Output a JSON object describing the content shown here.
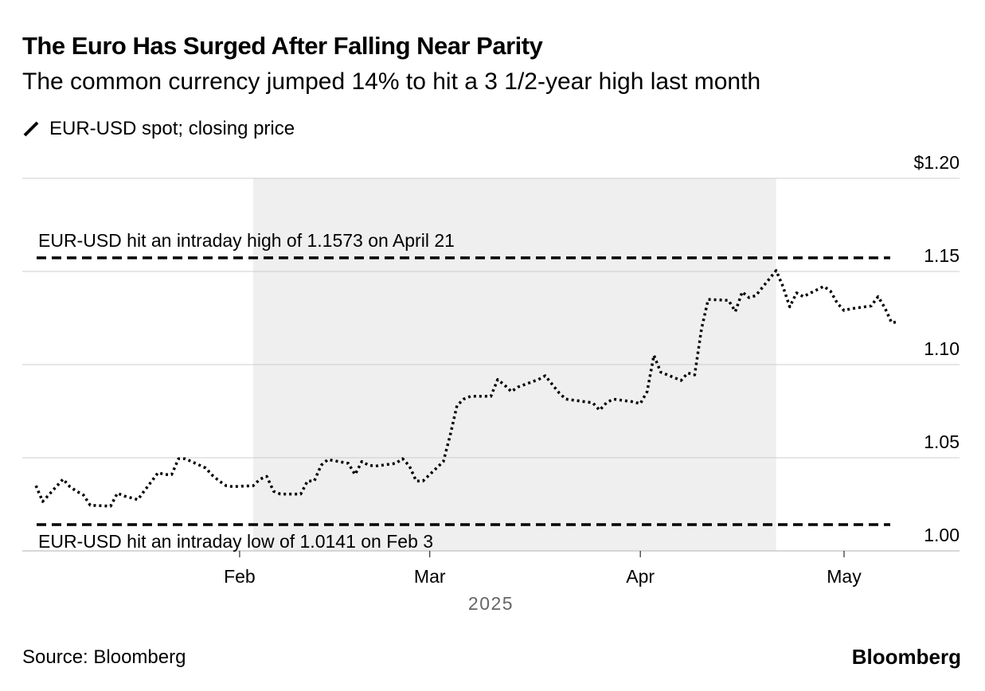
{
  "title": "The Euro Has Surged After Falling Near Parity",
  "subtitle": "The common currency jumped 14% to hit a 3 1/2-year high last month",
  "legend": {
    "label": "EUR-USD spot; closing price",
    "icon": "pencil-icon"
  },
  "source": "Source: Bloomberg",
  "brand": "Bloomberg",
  "colors": {
    "line": "#000000",
    "grid": "#cccccc",
    "shade": "#efefef",
    "axis_year": "#666666"
  },
  "chart_data": {
    "type": "line",
    "y_ticks": [
      {
        "value": 1.2,
        "label": "$1.20"
      },
      {
        "value": 1.15,
        "label": "1.15"
      },
      {
        "value": 1.1,
        "label": "1.10"
      },
      {
        "value": 1.05,
        "label": "1.05"
      },
      {
        "value": 1.0,
        "label": "1.00"
      }
    ],
    "ylim": [
      1.0,
      1.2
    ],
    "x_ticks": [
      {
        "date": "2025-02-01",
        "label": "Feb"
      },
      {
        "date": "2025-03-01",
        "label": "Mar"
      },
      {
        "date": "2025-04-01",
        "label": "Apr"
      },
      {
        "date": "2025-05-01",
        "label": "May"
      }
    ],
    "xlim": [
      "2024-12-31",
      "2025-05-18"
    ],
    "year_label": "2025",
    "shaded_range": [
      "2025-02-03",
      "2025-04-21"
    ],
    "annotations": [
      {
        "value": 1.1573,
        "label": "EUR-USD hit an intraday high of 1.1573 on April 21",
        "label_position": "above"
      },
      {
        "value": 1.0141,
        "label": "EUR-USD hit an intraday low of 1.0141 on Feb 3",
        "label_position": "below"
      }
    ],
    "series": [
      {
        "points": [
          [
            "2025-01-02",
            1.035
          ],
          [
            "2025-01-03",
            1.0265
          ],
          [
            "2025-01-06",
            1.0385
          ],
          [
            "2025-01-07",
            1.0345
          ],
          [
            "2025-01-08",
            1.032
          ],
          [
            "2025-01-09",
            1.03
          ],
          [
            "2025-01-10",
            1.0245
          ],
          [
            "2025-01-13",
            1.024
          ],
          [
            "2025-01-14",
            1.031
          ],
          [
            "2025-01-15",
            1.0295
          ],
          [
            "2025-01-16",
            1.0285
          ],
          [
            "2025-01-17",
            1.0275
          ],
          [
            "2025-01-20",
            1.042
          ],
          [
            "2025-01-21",
            1.041
          ],
          [
            "2025-01-22",
            1.041
          ],
          [
            "2025-01-23",
            1.0495
          ],
          [
            "2025-01-24",
            1.0495
          ],
          [
            "2025-01-27",
            1.0445
          ],
          [
            "2025-01-28",
            1.0405
          ],
          [
            "2025-01-29",
            1.0375
          ],
          [
            "2025-01-30",
            1.035
          ],
          [
            "2025-01-31",
            1.0345
          ],
          [
            "2025-02-03",
            1.035
          ],
          [
            "2025-02-04",
            1.0385
          ],
          [
            "2025-02-05",
            1.04
          ],
          [
            "2025-02-06",
            1.032
          ],
          [
            "2025-02-07",
            1.0305
          ],
          [
            "2025-02-10",
            1.0305
          ],
          [
            "2025-02-11",
            1.0375
          ],
          [
            "2025-02-12",
            1.0375
          ],
          [
            "2025-02-13",
            1.046
          ],
          [
            "2025-02-14",
            1.049
          ],
          [
            "2025-02-17",
            1.047
          ],
          [
            "2025-02-18",
            1.041
          ],
          [
            "2025-02-19",
            1.048
          ],
          [
            "2025-02-20",
            1.046
          ],
          [
            "2025-02-21",
            1.0455
          ],
          [
            "2025-02-24",
            1.047
          ],
          [
            "2025-02-25",
            1.0495
          ],
          [
            "2025-02-26",
            1.0455
          ],
          [
            "2025-02-27",
            1.0375
          ],
          [
            "2025-02-28",
            1.0375
          ],
          [
            "2025-03-03",
            1.048
          ],
          [
            "2025-03-04",
            1.062
          ],
          [
            "2025-03-05",
            1.078
          ],
          [
            "2025-03-06",
            1.0815
          ],
          [
            "2025-03-07",
            1.083
          ],
          [
            "2025-03-10",
            1.083
          ],
          [
            "2025-03-11",
            1.092
          ],
          [
            "2025-03-12",
            1.089
          ],
          [
            "2025-03-13",
            1.0855
          ],
          [
            "2025-03-14",
            1.088
          ],
          [
            "2025-03-17",
            1.092
          ],
          [
            "2025-03-18",
            1.094
          ],
          [
            "2025-03-19",
            1.0895
          ],
          [
            "2025-03-20",
            1.085
          ],
          [
            "2025-03-21",
            1.0815
          ],
          [
            "2025-03-24",
            1.08
          ],
          [
            "2025-03-25",
            1.0795
          ],
          [
            "2025-03-26",
            1.0755
          ],
          [
            "2025-03-27",
            1.0795
          ],
          [
            "2025-03-28",
            1.0815
          ],
          [
            "2025-03-31",
            1.08
          ],
          [
            "2025-04-01",
            1.079
          ],
          [
            "2025-04-02",
            1.0855
          ],
          [
            "2025-04-03",
            1.105
          ],
          [
            "2025-04-04",
            1.096
          ],
          [
            "2025-04-07",
            1.0915
          ],
          [
            "2025-04-08",
            1.0955
          ],
          [
            "2025-04-09",
            1.0945
          ],
          [
            "2025-04-10",
            1.119
          ],
          [
            "2025-04-11",
            1.135
          ],
          [
            "2025-04-14",
            1.1345
          ],
          [
            "2025-04-15",
            1.1285
          ],
          [
            "2025-04-16",
            1.139
          ],
          [
            "2025-04-17",
            1.136
          ],
          [
            "2025-04-18",
            1.137
          ],
          [
            "2025-04-21",
            1.1505
          ],
          [
            "2025-04-22",
            1.142
          ],
          [
            "2025-04-23",
            1.131
          ],
          [
            "2025-04-24",
            1.1385
          ],
          [
            "2025-04-25",
            1.1365
          ],
          [
            "2025-04-28",
            1.142
          ],
          [
            "2025-04-29",
            1.1395
          ],
          [
            "2025-04-30",
            1.133
          ],
          [
            "2025-05-01",
            1.129
          ],
          [
            "2025-05-02",
            1.13
          ],
          [
            "2025-05-05",
            1.1315
          ],
          [
            "2025-05-06",
            1.1365
          ],
          [
            "2025-05-07",
            1.1305
          ],
          [
            "2025-05-08",
            1.1225
          ],
          [
            "2025-05-09",
            1.123
          ]
        ]
      }
    ]
  }
}
